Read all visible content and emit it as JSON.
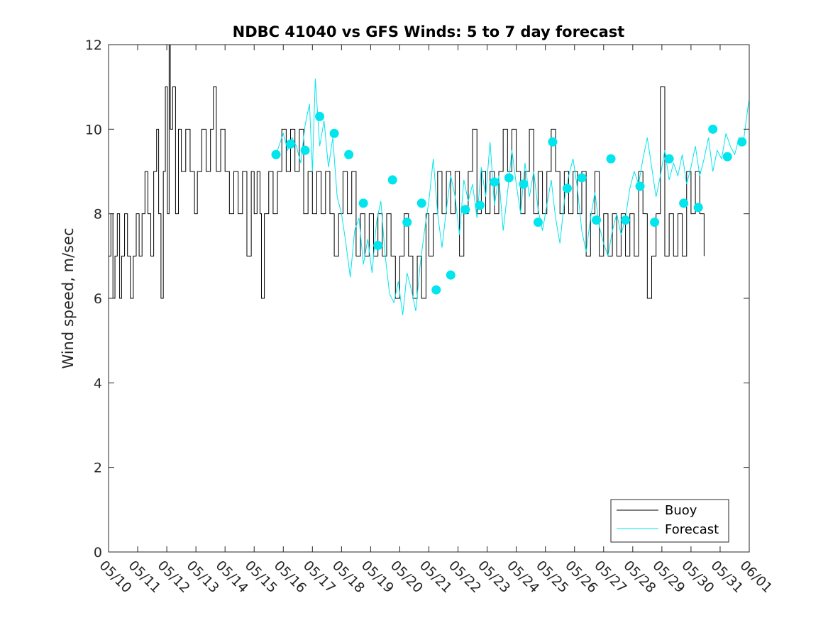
{
  "chart_data": {
    "type": "line",
    "title": "NDBC 41040 vs GFS Winds: 5 to 7 day forecast",
    "xlabel": "",
    "ylabel": "Wind speed, m/sec",
    "ylim": [
      0,
      12
    ],
    "yticks": [
      0,
      2,
      4,
      6,
      8,
      10,
      12
    ],
    "xtick_labels": [
      "05/10",
      "05/11",
      "05/12",
      "05/13",
      "05/14",
      "05/15",
      "05/16",
      "05/17",
      "05/18",
      "05/19",
      "05/20",
      "05/21",
      "05/22",
      "05/23",
      "05/24",
      "05/25",
      "05/26",
      "05/27",
      "05/28",
      "05/29",
      "05/30",
      "05/31",
      "06/01"
    ],
    "grid": false,
    "legend_location": "bottom-right",
    "series": [
      {
        "name": "Buoy",
        "color": "#000000",
        "style": "line",
        "points": [
          [
            0.0,
            7
          ],
          [
            0.08,
            8
          ],
          [
            0.15,
            6
          ],
          [
            0.22,
            7
          ],
          [
            0.3,
            8
          ],
          [
            0.38,
            6
          ],
          [
            0.45,
            7
          ],
          [
            0.55,
            8
          ],
          [
            0.65,
            7
          ],
          [
            0.75,
            6
          ],
          [
            0.85,
            7
          ],
          [
            0.95,
            8
          ],
          [
            1.05,
            7
          ],
          [
            1.15,
            8
          ],
          [
            1.25,
            9
          ],
          [
            1.35,
            8
          ],
          [
            1.45,
            7
          ],
          [
            1.55,
            9
          ],
          [
            1.65,
            10
          ],
          [
            1.72,
            8
          ],
          [
            1.8,
            6
          ],
          [
            1.88,
            9
          ],
          [
            1.95,
            11
          ],
          [
            2.02,
            8
          ],
          [
            2.08,
            12
          ],
          [
            2.12,
            10
          ],
          [
            2.2,
            11
          ],
          [
            2.3,
            8
          ],
          [
            2.4,
            10
          ],
          [
            2.5,
            9
          ],
          [
            2.65,
            10
          ],
          [
            2.8,
            9
          ],
          [
            2.95,
            8
          ],
          [
            3.05,
            9
          ],
          [
            3.2,
            10
          ],
          [
            3.35,
            9
          ],
          [
            3.5,
            10
          ],
          [
            3.6,
            11
          ],
          [
            3.7,
            9
          ],
          [
            3.85,
            10
          ],
          [
            4.0,
            9
          ],
          [
            4.15,
            8
          ],
          [
            4.3,
            9
          ],
          [
            4.45,
            8
          ],
          [
            4.6,
            9
          ],
          [
            4.75,
            7
          ],
          [
            4.9,
            9
          ],
          [
            5.0,
            8
          ],
          [
            5.1,
            9
          ],
          [
            5.2,
            8
          ],
          [
            5.25,
            6
          ],
          [
            5.35,
            8
          ],
          [
            5.5,
            9
          ],
          [
            5.65,
            8
          ],
          [
            5.8,
            9
          ],
          [
            5.95,
            10
          ],
          [
            6.1,
            9
          ],
          [
            6.25,
            10
          ],
          [
            6.4,
            9
          ],
          [
            6.55,
            10
          ],
          [
            6.7,
            8
          ],
          [
            6.85,
            9
          ],
          [
            7.0,
            8
          ],
          [
            7.15,
            9
          ],
          [
            7.3,
            8
          ],
          [
            7.45,
            9
          ],
          [
            7.6,
            8
          ],
          [
            7.75,
            7
          ],
          [
            7.9,
            8
          ],
          [
            8.05,
            9
          ],
          [
            8.2,
            8
          ],
          [
            8.35,
            9
          ],
          [
            8.5,
            7
          ],
          [
            8.65,
            8
          ],
          [
            8.8,
            7
          ],
          [
            8.95,
            8
          ],
          [
            9.1,
            7
          ],
          [
            9.25,
            8
          ],
          [
            9.4,
            7
          ],
          [
            9.55,
            8
          ],
          [
            9.7,
            7
          ],
          [
            9.85,
            6
          ],
          [
            10.0,
            7
          ],
          [
            10.15,
            8
          ],
          [
            10.3,
            7
          ],
          [
            10.45,
            6
          ],
          [
            10.6,
            7
          ],
          [
            10.75,
            6
          ],
          [
            10.9,
            8
          ],
          [
            11.0,
            7
          ],
          [
            11.15,
            8
          ],
          [
            11.3,
            9
          ],
          [
            11.45,
            8
          ],
          [
            11.6,
            9
          ],
          [
            11.75,
            8
          ],
          [
            11.9,
            9
          ],
          [
            12.05,
            7
          ],
          [
            12.2,
            8
          ],
          [
            12.35,
            9
          ],
          [
            12.5,
            10
          ],
          [
            12.65,
            8
          ],
          [
            12.8,
            9
          ],
          [
            12.95,
            8
          ],
          [
            13.1,
            9
          ],
          [
            13.25,
            8
          ],
          [
            13.4,
            9
          ],
          [
            13.55,
            10
          ],
          [
            13.7,
            9
          ],
          [
            13.85,
            10
          ],
          [
            14.0,
            9
          ],
          [
            14.15,
            8
          ],
          [
            14.3,
            9
          ],
          [
            14.45,
            10
          ],
          [
            14.6,
            8
          ],
          [
            14.75,
            9
          ],
          [
            14.9,
            8
          ],
          [
            15.05,
            9
          ],
          [
            15.2,
            10
          ],
          [
            15.35,
            9
          ],
          [
            15.5,
            8
          ],
          [
            15.65,
            9
          ],
          [
            15.8,
            8
          ],
          [
            15.95,
            9
          ],
          [
            16.1,
            8
          ],
          [
            16.25,
            9
          ],
          [
            16.4,
            7
          ],
          [
            16.55,
            8
          ],
          [
            16.7,
            9
          ],
          [
            16.85,
            7
          ],
          [
            17.0,
            8
          ],
          [
            17.15,
            7
          ],
          [
            17.3,
            8
          ],
          [
            17.45,
            7
          ],
          [
            17.6,
            8
          ],
          [
            17.75,
            7
          ],
          [
            17.9,
            8
          ],
          [
            18.05,
            7
          ],
          [
            18.2,
            9
          ],
          [
            18.35,
            8
          ],
          [
            18.5,
            6
          ],
          [
            18.65,
            7
          ],
          [
            18.8,
            8
          ],
          [
            18.95,
            11
          ],
          [
            19.1,
            7
          ],
          [
            19.25,
            8
          ],
          [
            19.4,
            7
          ],
          [
            19.55,
            8
          ],
          [
            19.7,
            7
          ],
          [
            19.85,
            9
          ],
          [
            20.0,
            8
          ],
          [
            20.15,
            9
          ],
          [
            20.3,
            8
          ],
          [
            20.45,
            7
          ]
        ]
      },
      {
        "name": "Forecast",
        "color": "#00e5ee",
        "style": "line",
        "points": [
          [
            5.7,
            9.3
          ],
          [
            5.85,
            9.6
          ],
          [
            6.0,
            9.9
          ],
          [
            6.15,
            9.5
          ],
          [
            6.3,
            9.8
          ],
          [
            6.45,
            9.6
          ],
          [
            6.6,
            9.2
          ],
          [
            6.75,
            10.1
          ],
          [
            6.9,
            10.6
          ],
          [
            7.0,
            9.0
          ],
          [
            7.1,
            11.2
          ],
          [
            7.25,
            9.6
          ],
          [
            7.4,
            10.2
          ],
          [
            7.55,
            9.1
          ],
          [
            7.7,
            9.8
          ],
          [
            7.85,
            8.4
          ],
          [
            8.0,
            8.0
          ],
          [
            8.15,
            7.3
          ],
          [
            8.3,
            6.5
          ],
          [
            8.45,
            7.6
          ],
          [
            8.6,
            7.9
          ],
          [
            8.75,
            6.8
          ],
          [
            8.9,
            7.4
          ],
          [
            9.05,
            6.6
          ],
          [
            9.2,
            7.8
          ],
          [
            9.35,
            8.3
          ],
          [
            9.5,
            7.0
          ],
          [
            9.65,
            6.1
          ],
          [
            9.8,
            5.9
          ],
          [
            9.95,
            6.4
          ],
          [
            10.1,
            5.6
          ],
          [
            10.25,
            6.6
          ],
          [
            10.4,
            6.2
          ],
          [
            10.55,
            5.7
          ],
          [
            10.7,
            6.8
          ],
          [
            10.85,
            7.6
          ],
          [
            11.0,
            8.3
          ],
          [
            11.15,
            9.3
          ],
          [
            11.3,
            8.0
          ],
          [
            11.45,
            7.2
          ],
          [
            11.6,
            8.1
          ],
          [
            11.75,
            8.9
          ],
          [
            11.9,
            8.4
          ],
          [
            12.05,
            7.5
          ],
          [
            12.2,
            8.8
          ],
          [
            12.35,
            8.3
          ],
          [
            12.5,
            8.7
          ],
          [
            12.65,
            7.9
          ],
          [
            12.8,
            9.1
          ],
          [
            12.95,
            8.4
          ],
          [
            13.1,
            9.7
          ],
          [
            13.25,
            8.2
          ],
          [
            13.4,
            8.9
          ],
          [
            13.55,
            7.6
          ],
          [
            13.7,
            8.5
          ],
          [
            13.85,
            9.5
          ],
          [
            14.0,
            8.7
          ],
          [
            14.15,
            8.0
          ],
          [
            14.3,
            9.2
          ],
          [
            14.45,
            8.4
          ],
          [
            14.6,
            9.0
          ],
          [
            14.75,
            8.1
          ],
          [
            14.9,
            7.6
          ],
          [
            15.05,
            8.2
          ],
          [
            15.2,
            8.8
          ],
          [
            15.35,
            7.9
          ],
          [
            15.5,
            7.3
          ],
          [
            15.65,
            8.3
          ],
          [
            15.8,
            8.9
          ],
          [
            15.95,
            9.3
          ],
          [
            16.1,
            8.6
          ],
          [
            16.25,
            7.6
          ],
          [
            16.4,
            7.1
          ],
          [
            16.55,
            7.9
          ],
          [
            16.7,
            8.5
          ],
          [
            16.85,
            7.7
          ],
          [
            17.0,
            7.3
          ],
          [
            17.15,
            7.0
          ],
          [
            17.3,
            7.6
          ],
          [
            17.45,
            8.0
          ],
          [
            17.6,
            7.5
          ],
          [
            17.75,
            7.9
          ],
          [
            17.9,
            8.6
          ],
          [
            18.05,
            9.0
          ],
          [
            18.2,
            8.7
          ],
          [
            18.35,
            9.3
          ],
          [
            18.5,
            9.8
          ],
          [
            18.65,
            9.1
          ],
          [
            18.8,
            8.4
          ],
          [
            18.95,
            8.9
          ],
          [
            19.1,
            9.5
          ],
          [
            19.25,
            8.8
          ],
          [
            19.4,
            9.2
          ],
          [
            19.55,
            8.9
          ],
          [
            19.7,
            9.4
          ],
          [
            19.85,
            8.7
          ],
          [
            20.0,
            9.1
          ],
          [
            20.15,
            9.6
          ],
          [
            20.3,
            8.9
          ],
          [
            20.45,
            9.3
          ],
          [
            20.6,
            9.8
          ],
          [
            20.75,
            9.0
          ],
          [
            20.9,
            9.5
          ],
          [
            21.05,
            9.3
          ],
          [
            21.2,
            9.9
          ],
          [
            21.35,
            9.6
          ],
          [
            21.5,
            9.4
          ],
          [
            21.65,
            9.8
          ],
          [
            21.8,
            9.7
          ],
          [
            21.95,
            10.5
          ],
          [
            22.0,
            10.7
          ]
        ]
      },
      {
        "name": "",
        "color": "#00e5ee",
        "style": "markers",
        "points": [
          [
            5.75,
            9.4
          ],
          [
            6.25,
            9.65
          ],
          [
            6.75,
            9.5
          ],
          [
            7.25,
            10.3
          ],
          [
            7.75,
            9.9
          ],
          [
            8.25,
            9.4
          ],
          [
            8.75,
            8.25
          ],
          [
            9.25,
            7.25
          ],
          [
            9.75,
            8.8
          ],
          [
            10.25,
            7.8
          ],
          [
            10.75,
            8.25
          ],
          [
            11.25,
            6.2
          ],
          [
            11.75,
            6.55
          ],
          [
            12.25,
            8.1
          ],
          [
            12.75,
            8.2
          ],
          [
            13.25,
            8.75
          ],
          [
            13.75,
            8.85
          ],
          [
            14.25,
            8.7
          ],
          [
            14.75,
            7.8
          ],
          [
            15.25,
            9.7
          ],
          [
            15.75,
            8.6
          ],
          [
            16.25,
            8.85
          ],
          [
            16.75,
            7.85
          ],
          [
            17.25,
            9.3
          ],
          [
            17.75,
            7.85
          ],
          [
            18.25,
            8.65
          ],
          [
            18.75,
            7.8
          ],
          [
            19.25,
            9.3
          ],
          [
            19.75,
            8.25
          ],
          [
            20.25,
            8.15
          ],
          [
            20.75,
            10.0
          ],
          [
            21.25,
            9.35
          ],
          [
            21.75,
            9.7
          ]
        ]
      }
    ]
  }
}
